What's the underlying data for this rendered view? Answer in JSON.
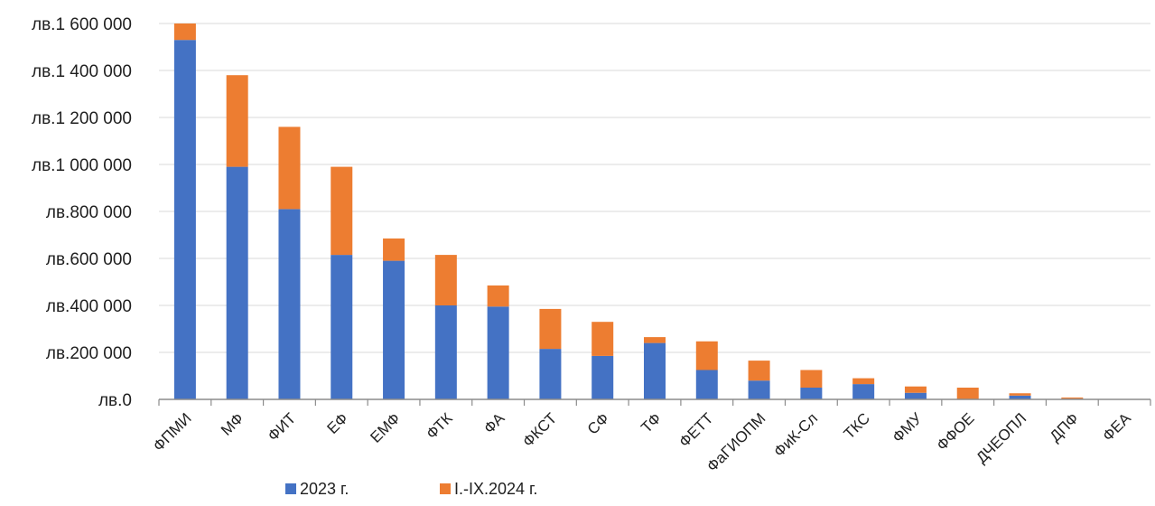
{
  "chart_data": {
    "type": "bar",
    "stacked": true,
    "title": "",
    "xlabel": "",
    "ylabel": "",
    "categories": [
      "ФПМИ",
      "МФ",
      "ФИТ",
      "ЕФ",
      "ЕМФ",
      "ФТК",
      "ФА",
      "ФКСТ",
      "СФ",
      "ТФ",
      "ФЕТТ",
      "ФаГИОПМ",
      "ФиК-Сл",
      "ТКС",
      "ФМУ",
      "ФФОЕ",
      "ДЧЕОПЛ",
      "ДПФ",
      "ФЕА"
    ],
    "series": [
      {
        "name": "2023 г.",
        "color": "#4472C4",
        "values": [
          1530000,
          990000,
          810000,
          615000,
          590000,
          400000,
          395000,
          215000,
          185000,
          240000,
          125000,
          80000,
          50000,
          65000,
          28000,
          0,
          16000,
          3000,
          0
        ]
      },
      {
        "name": "I.-IX.2024 г.",
        "color": "#ED7D31",
        "values": [
          70000,
          390000,
          350000,
          375000,
          95000,
          215000,
          90000,
          170000,
          145000,
          25000,
          122000,
          85000,
          75000,
          25000,
          27000,
          50000,
          10000,
          5000,
          0
        ]
      }
    ],
    "ylim": [
      0,
      1600000
    ],
    "yticks": [
      0,
      200000,
      400000,
      600000,
      800000,
      1000000,
      1200000,
      1400000,
      1600000
    ],
    "ytick_labels": [
      "лв.0",
      "лв.200 000",
      "лв.400 000",
      "лв.600 000",
      "лв.800 000",
      "лв.1 000 000",
      "лв.1 200 000",
      "лв.1 400 000",
      "лв.1 600 000"
    ],
    "grid": true,
    "legend_position": "bottom-left"
  },
  "colors": {
    "axis": "#8c8c8c",
    "grid": "#d9d9d9",
    "text": "#1f1f1f"
  }
}
